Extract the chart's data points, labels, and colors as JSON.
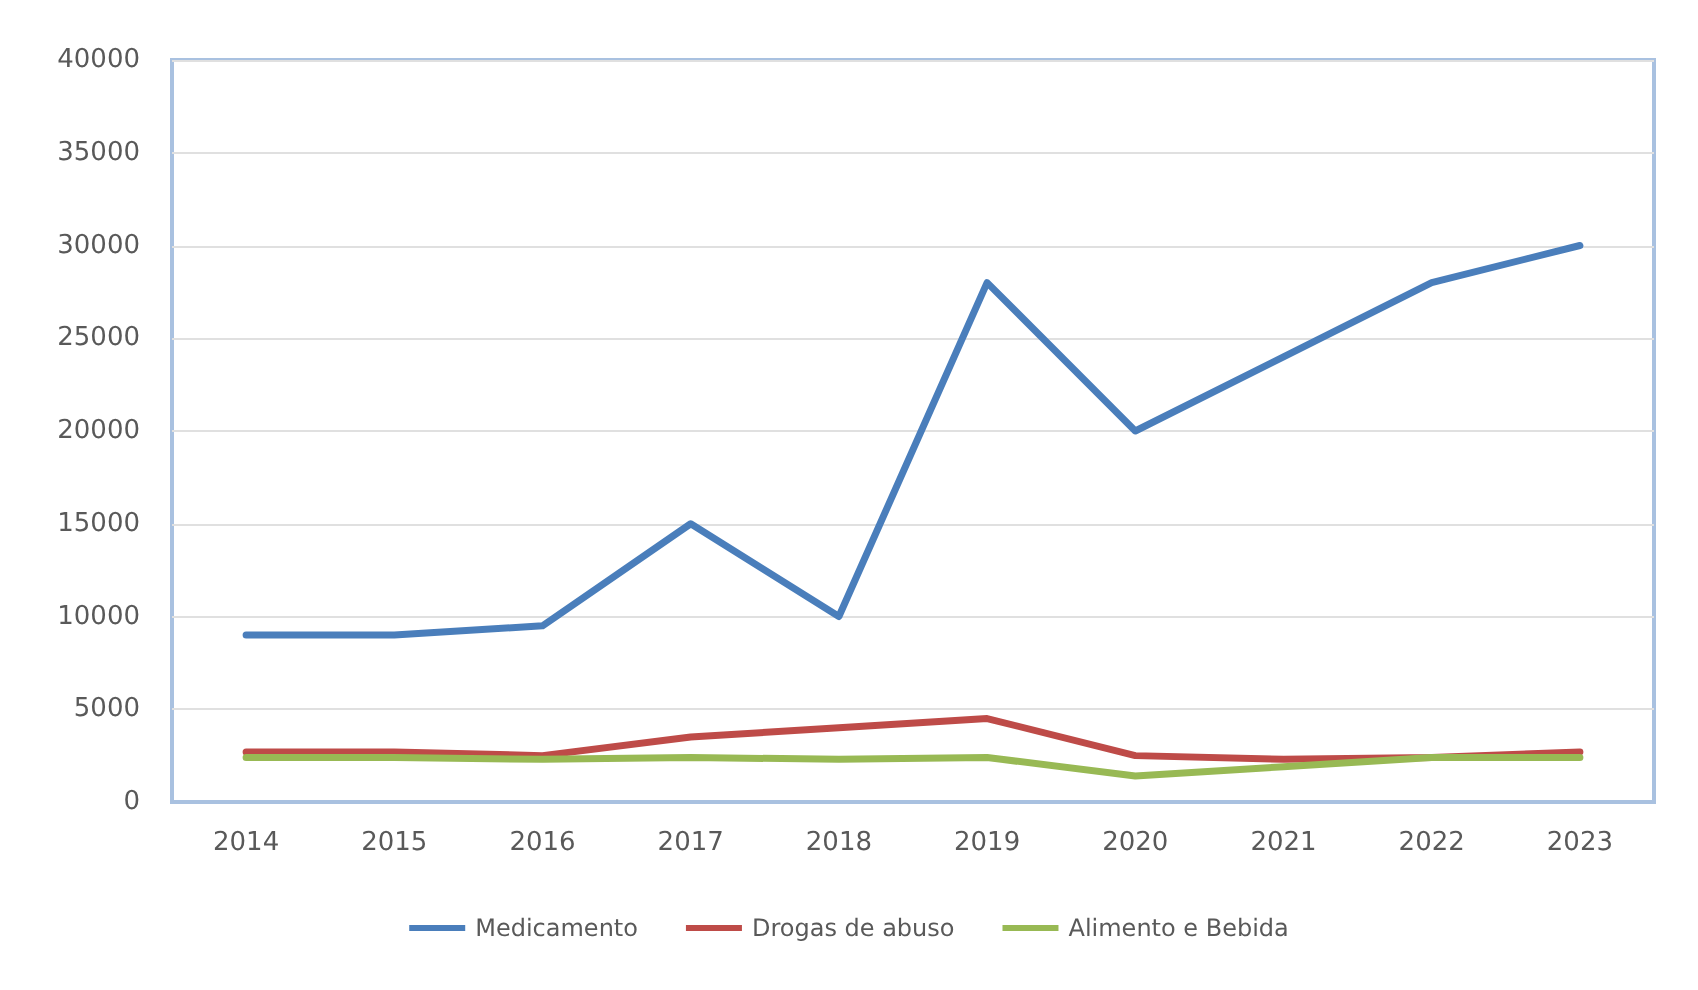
{
  "chart_data": {
    "type": "line",
    "categories": [
      "2014",
      "2015",
      "2016",
      "2017",
      "2018",
      "2019",
      "2020",
      "2021",
      "2022",
      "2023"
    ],
    "series": [
      {
        "name": "Medicamento",
        "color": "#4a7ebb",
        "values": [
          9000,
          9000,
          9500,
          15000,
          10000,
          28000,
          20000,
          24000,
          28000,
          30000
        ]
      },
      {
        "name": "Drogas de abuso",
        "color": "#be4b48",
        "values": [
          2700,
          2700,
          2500,
          3500,
          4000,
          4500,
          2500,
          2300,
          2400,
          2700
        ]
      },
      {
        "name": "Alimento e Bebida",
        "color": "#98b954",
        "values": [
          2400,
          2400,
          2300,
          2400,
          2300,
          2400,
          1400,
          1900,
          2400,
          2400
        ]
      }
    ],
    "ylim": [
      0,
      40000
    ],
    "yticks": [
      0,
      5000,
      10000,
      15000,
      20000,
      25000,
      30000,
      35000,
      40000
    ],
    "grid": "y",
    "legend": "bottom",
    "marker": "none",
    "line_style": "solid"
  }
}
